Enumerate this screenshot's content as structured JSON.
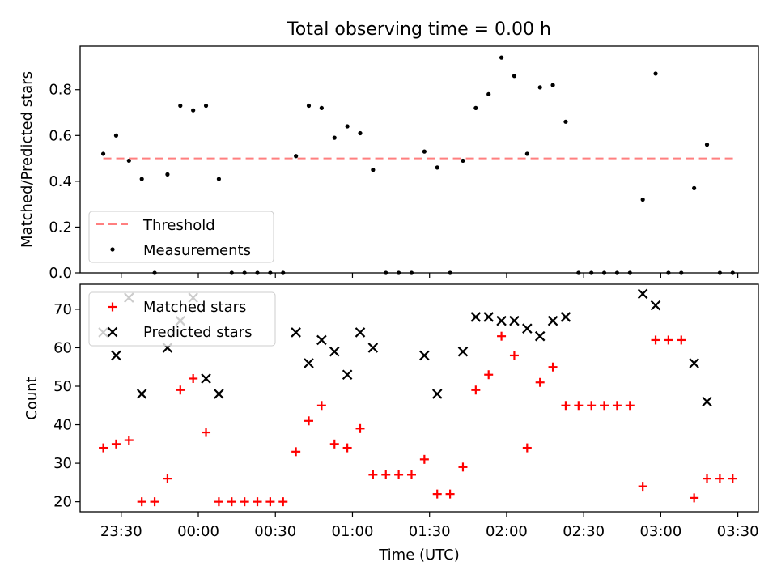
{
  "figure": {
    "title": "Total observing time = 0.00 h",
    "xlabel": "Time (UTC)"
  },
  "chart_data": [
    {
      "type": "scatter",
      "ylabel": "Matched/Predicted stars",
      "ylim": [
        0,
        0.99
      ],
      "yticks": [
        0.0,
        0.2,
        0.4,
        0.6,
        0.8
      ],
      "ytick_labels": [
        "0.0",
        "0.2",
        "0.4",
        "0.6",
        "0.8"
      ],
      "legend_placement": "lower-left",
      "threshold": {
        "name": "Threshold",
        "value": 0.5,
        "color": "#ff7f7f",
        "x_start": "23:23",
        "x_end": "03:29"
      },
      "series": [
        {
          "name": "Measurements",
          "color": "#000000",
          "x": [
            "23:23",
            "23:28",
            "23:33",
            "23:38",
            "23:43",
            "23:48",
            "23:53",
            "23:58",
            "00:03",
            "00:08",
            "00:13",
            "00:18",
            "00:23",
            "00:28",
            "00:33",
            "00:38",
            "00:43",
            "00:48",
            "00:53",
            "00:58",
            "01:03",
            "01:08",
            "01:13",
            "01:18",
            "01:23",
            "01:28",
            "01:33",
            "01:38",
            "01:43",
            "01:48",
            "01:53",
            "01:58",
            "02:03",
            "02:08",
            "02:13",
            "02:18",
            "02:23",
            "02:28",
            "02:33",
            "02:38",
            "02:43",
            "02:48",
            "02:53",
            "02:58",
            "03:03",
            "03:08",
            "03:13",
            "03:18",
            "03:23",
            "03:28"
          ],
          "y": [
            0.52,
            0.6,
            0.49,
            0.41,
            0.0,
            0.43,
            0.73,
            0.71,
            0.73,
            0.41,
            0.0,
            0.0,
            0.0,
            0.0,
            0.0,
            0.51,
            0.73,
            0.72,
            0.59,
            0.64,
            0.61,
            0.45,
            0.0,
            0.0,
            0.0,
            0.53,
            0.46,
            0.0,
            0.49,
            0.72,
            0.78,
            0.94,
            0.86,
            0.52,
            0.81,
            0.82,
            0.66,
            0.0,
            0.0,
            0.0,
            0.0,
            0.0,
            0.32,
            0.87,
            0.0,
            0.0,
            0.37,
            0.56,
            0.0,
            0.0
          ]
        }
      ]
    },
    {
      "type": "scatter",
      "ylabel": "Count",
      "ylim": [
        17.4,
        76.5
      ],
      "yticks": [
        20,
        30,
        40,
        50,
        60,
        70
      ],
      "ytick_labels": [
        "20",
        "30",
        "40",
        "50",
        "60",
        "70"
      ],
      "x_ticks": [
        "23:30",
        "00:00",
        "00:30",
        "01:00",
        "01:30",
        "02:00",
        "02:30",
        "03:00",
        "03:30"
      ],
      "xlim": [
        "23:14",
        "03:38"
      ],
      "legend_placement": "top-left",
      "series": [
        {
          "name": "Matched stars",
          "marker": "plus",
          "color": "#ff0000",
          "x": [
            "23:23",
            "23:28",
            "23:33",
            "23:38",
            "23:43",
            "23:48",
            "23:53",
            "23:58",
            "00:03",
            "00:08",
            "00:13",
            "00:18",
            "00:23",
            "00:28",
            "00:33",
            "00:38",
            "00:43",
            "00:48",
            "00:53",
            "00:58",
            "01:03",
            "01:08",
            "01:13",
            "01:18",
            "01:23",
            "01:28",
            "01:33",
            "01:38",
            "01:43",
            "01:48",
            "01:53",
            "01:58",
            "02:03",
            "02:08",
            "02:13",
            "02:18",
            "02:23",
            "02:28",
            "02:33",
            "02:38",
            "02:43",
            "02:48",
            "02:53",
            "02:58",
            "03:03",
            "03:08",
            "03:13",
            "03:18",
            "03:23",
            "03:28"
          ],
          "y": [
            34,
            35,
            36,
            20,
            20,
            26,
            49,
            52,
            38,
            20,
            20,
            20,
            20,
            20,
            20,
            33,
            41,
            45,
            35,
            34,
            39,
            27,
            27,
            27,
            27,
            31,
            22,
            22,
            29,
            49,
            53,
            63,
            58,
            34,
            51,
            55,
            45,
            45,
            45,
            45,
            45,
            45,
            24,
            62,
            62,
            62,
            21,
            26,
            26,
            26
          ]
        },
        {
          "name": "Predicted stars",
          "marker": "x",
          "color": "#000000",
          "x": [
            "23:23",
            "23:28",
            "23:33",
            "23:38",
            "23:48",
            "23:53",
            "23:58",
            "00:03",
            "00:08",
            "00:38",
            "00:43",
            "00:48",
            "00:53",
            "00:58",
            "01:03",
            "01:08",
            "01:28",
            "01:33",
            "01:43",
            "01:48",
            "01:53",
            "01:58",
            "02:03",
            "02:08",
            "02:13",
            "02:18",
            "02:23",
            "02:53",
            "02:58",
            "03:13",
            "03:18"
          ],
          "y": [
            64,
            58,
            73,
            48,
            60,
            67,
            73,
            52,
            48,
            64,
            56,
            62,
            59,
            53,
            64,
            60,
            58,
            48,
            59,
            68,
            68,
            67,
            67,
            65,
            63,
            67,
            68,
            74,
            71,
            56,
            46
          ]
        }
      ]
    }
  ]
}
